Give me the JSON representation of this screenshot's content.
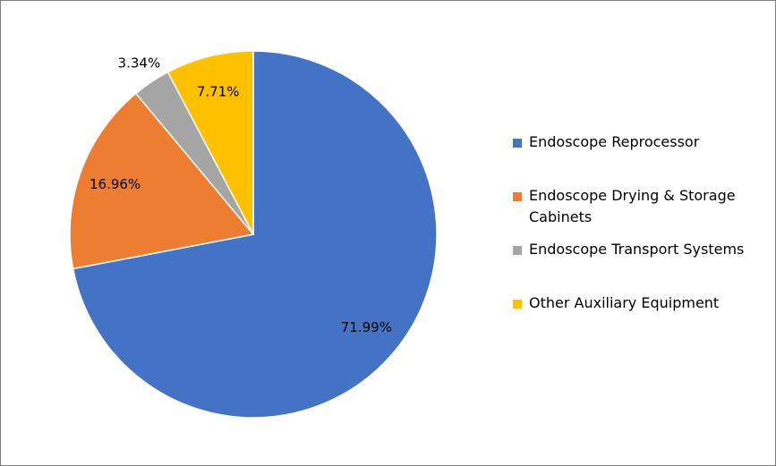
{
  "chart_data": {
    "type": "pie",
    "categories": [
      "Endoscope Reprocessor",
      "Endoscope Drying & Storage Cabinets",
      "Endoscope Transport Systems",
      "Other Auxiliary Equipment"
    ],
    "values": [
      71.99,
      16.96,
      3.34,
      7.71
    ],
    "value_labels": [
      "71.99%",
      "16.96%",
      "3.34%",
      "7.71%"
    ],
    "colors": [
      "#4472c4",
      "#ed7d31",
      "#a5a5a5",
      "#ffc000"
    ],
    "legend": "right"
  }
}
